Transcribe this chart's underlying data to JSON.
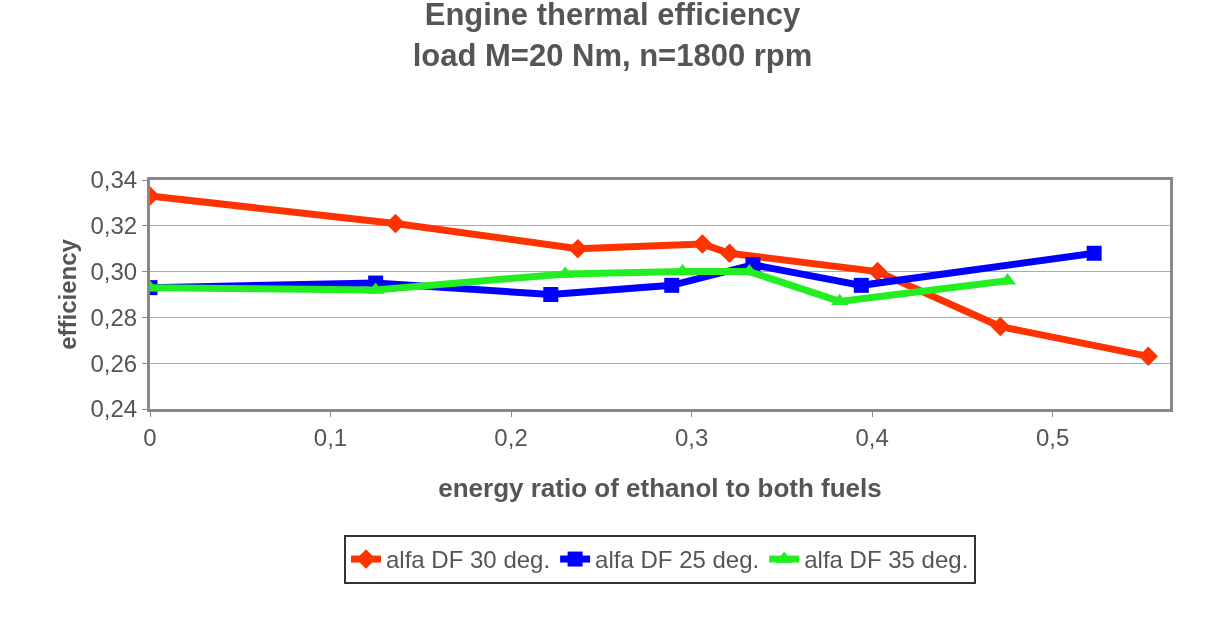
{
  "chart_data": {
    "type": "line",
    "title": "Engine thermal efficiency",
    "subtitle": "load M=20 Nm, n=1800 rpm",
    "xlabel": "energy ratio of ethanol to both fuels",
    "ylabel": "efficiency",
    "xlim": [
      0,
      0.565
    ],
    "xticks": [
      {
        "value": 0,
        "label": "0"
      },
      {
        "value": 0.1,
        "label": "0,1"
      },
      {
        "value": 0.2,
        "label": "0,2"
      },
      {
        "value": 0.3,
        "label": "0,3"
      },
      {
        "value": 0.4,
        "label": "0,4"
      },
      {
        "value": 0.5,
        "label": "0,5"
      }
    ],
    "ylim": [
      0.24,
      0.34
    ],
    "yticks": [
      {
        "value": 0.24,
        "label": "0,24"
      },
      {
        "value": 0.26,
        "label": "0,26"
      },
      {
        "value": 0.28,
        "label": "0,28"
      },
      {
        "value": 0.3,
        "label": "0,30"
      },
      {
        "value": 0.32,
        "label": "0,32"
      },
      {
        "value": 0.34,
        "label": "0,34"
      }
    ],
    "grid": "y",
    "legend": "bottom",
    "series": [
      {
        "name": "alfa DF 30 deg.",
        "color": "#ff3300",
        "marker": "diamond",
        "x": [
          0,
          0.136,
          0.237,
          0.306,
          0.321,
          0.403,
          0.471,
          0.553
        ],
        "values": [
          0.333,
          0.321,
          0.31,
          0.312,
          0.308,
          0.3,
          0.276,
          0.263
        ]
      },
      {
        "name": "alfa DF 25 deg.",
        "color": "#0000ff",
        "marker": "square",
        "x": [
          0,
          0.125,
          0.222,
          0.289,
          0.334,
          0.394,
          0.523
        ],
        "values": [
          0.293,
          0.295,
          0.29,
          0.294,
          0.303,
          0.294,
          0.308
        ]
      },
      {
        "name": "alfa DF 35 deg.",
        "color": "#22ee22",
        "marker": "triangle",
        "x": [
          0,
          0.125,
          0.23,
          0.295,
          0.332,
          0.382,
          0.475
        ],
        "values": [
          0.293,
          0.292,
          0.299,
          0.3,
          0.3,
          0.287,
          0.296
        ]
      }
    ]
  }
}
